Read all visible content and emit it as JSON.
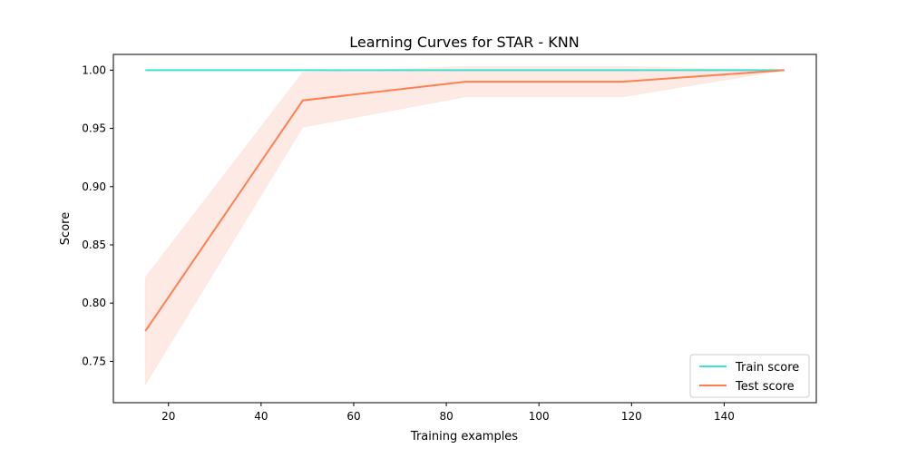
{
  "chart_data": {
    "type": "line",
    "title": "Learning Curves for STAR - KNN",
    "xlabel": "Training examples",
    "ylabel": "Score",
    "xlim": [
      8.1,
      159.9
    ],
    "ylim": [
      0.7145,
      1.0135
    ],
    "xticks": [
      20,
      40,
      60,
      80,
      100,
      120,
      140
    ],
    "xtick_labels": [
      "20",
      "40",
      "60",
      "80",
      "100",
      "120",
      "140"
    ],
    "yticks": [
      0.75,
      0.8,
      0.85,
      0.9,
      0.95,
      1.0
    ],
    "ytick_labels": [
      "0.75",
      "0.80",
      "0.85",
      "0.90",
      "0.95",
      "1.00"
    ],
    "grid": false,
    "legend_position": "lower right",
    "x": [
      15,
      49,
      84,
      118,
      153
    ],
    "series": [
      {
        "name": "Train score",
        "color": "#40e0d0",
        "values": [
          1.0,
          1.0,
          1.0,
          1.0,
          1.0
        ],
        "lower": [
          1.0,
          1.0,
          1.0,
          1.0,
          1.0
        ],
        "upper": [
          1.0,
          1.0,
          1.0,
          1.0,
          1.0
        ]
      },
      {
        "name": "Test score",
        "color": "#ff7f50",
        "band_color": "#fde3dc",
        "values": [
          0.776,
          0.974,
          0.99,
          0.99,
          1.0
        ],
        "lower": [
          0.73,
          0.951,
          0.977,
          0.977,
          1.0
        ],
        "upper": [
          0.822,
          0.998,
          1.003,
          1.003,
          1.0
        ]
      }
    ]
  }
}
